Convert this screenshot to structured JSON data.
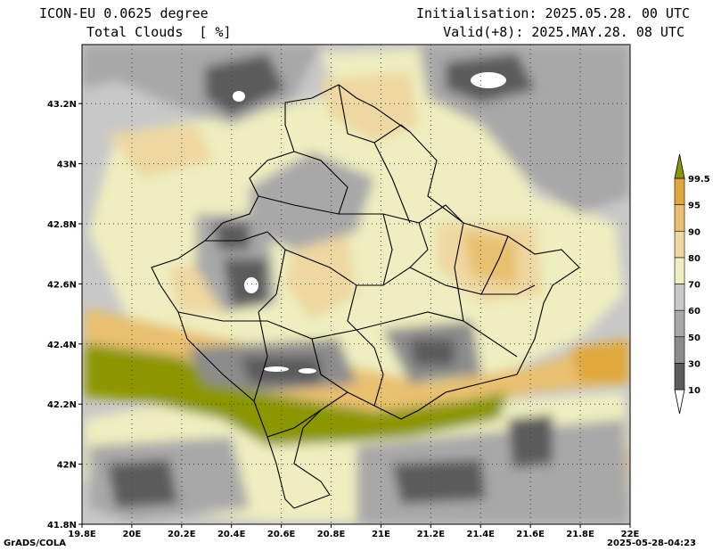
{
  "header": {
    "model": "ICON-EU 0.0625 degree",
    "variable": "Total Clouds  [ %]",
    "initialisation": "Initialisation: 2025.05.28. 00 UTC",
    "valid": "Valid(+8): 2025.MAY.28. 08 UTC"
  },
  "map": {
    "lon_ticks": [
      "19.8E",
      "20E",
      "20.2E",
      "20.4E",
      "20.6E",
      "20.8E",
      "21E",
      "21.2E",
      "21.4E",
      "21.6E",
      "21.8E",
      "22E"
    ],
    "lat_ticks": [
      "41.8N",
      "42N",
      "42.2N",
      "42.4N",
      "42.6N",
      "42.8N",
      "43N",
      "43.2N"
    ],
    "grid": "dotted"
  },
  "colorbar": {
    "levels": [
      "10",
      "30",
      "50",
      "60",
      "70",
      "80",
      "90",
      "95",
      "99.5"
    ],
    "colors": [
      "#ffffff",
      "#5c5c5c",
      "#8c8c8c",
      "#a8a8a8",
      "#c8c8c8",
      "#eeeec0",
      "#eed7a0",
      "#e8c070",
      "#e0a83c",
      "#8c9606"
    ]
  },
  "footer": {
    "credit": "GrADS/COLA",
    "timestamp": "2025-05-28-04:23"
  }
}
